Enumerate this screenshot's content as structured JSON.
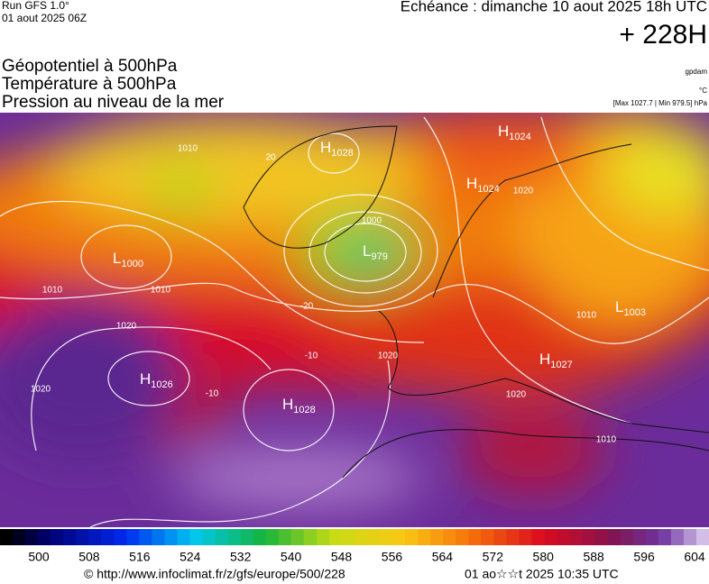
{
  "header": {
    "run": "Run GFS 1.0°",
    "date": "01 aout 2025 06Z",
    "echeance": "Echéance : dimanche 10 aout 2025 18h UTC",
    "lead": "+ 228H"
  },
  "fields": [
    "Géopotentiel à 500hPa",
    "Température à 500hPa",
    "Pression au niveau de la mer"
  ],
  "units": [
    "gpdam",
    "°C",
    "[Max 1027.7 | Min 979.5] hPa"
  ],
  "map": {
    "pressure_centers": [
      {
        "letter": "H",
        "value": "1028"
      },
      {
        "letter": "H",
        "value": "1024"
      },
      {
        "letter": "H",
        "value": "1024"
      },
      {
        "letter": "L",
        "value": "1000"
      },
      {
        "letter": "L",
        "value": "979"
      },
      {
        "letter": "H",
        "value": "1026"
      },
      {
        "letter": "H",
        "value": "1028"
      },
      {
        "letter": "H",
        "value": "1027"
      },
      {
        "letter": "L",
        "value": "1003"
      }
    ],
    "contour_labels": [
      "1010",
      "1010",
      "1010",
      "1020",
      "1020",
      "1000",
      "1020",
      "1020",
      "1020",
      "1010",
      "-20",
      "-10",
      "-10",
      "20",
      "1010"
    ]
  },
  "colorbar": {
    "ticks": [
      500,
      508,
      516,
      524,
      532,
      540,
      548,
      556,
      564,
      572,
      580,
      588,
      596,
      604
    ]
  },
  "footer": {
    "source": "© http://www.infoclimat.fr/z/gfs/europe/500/228",
    "timestamp": "01 ao☆☆t 2025 10:35 UTC"
  }
}
